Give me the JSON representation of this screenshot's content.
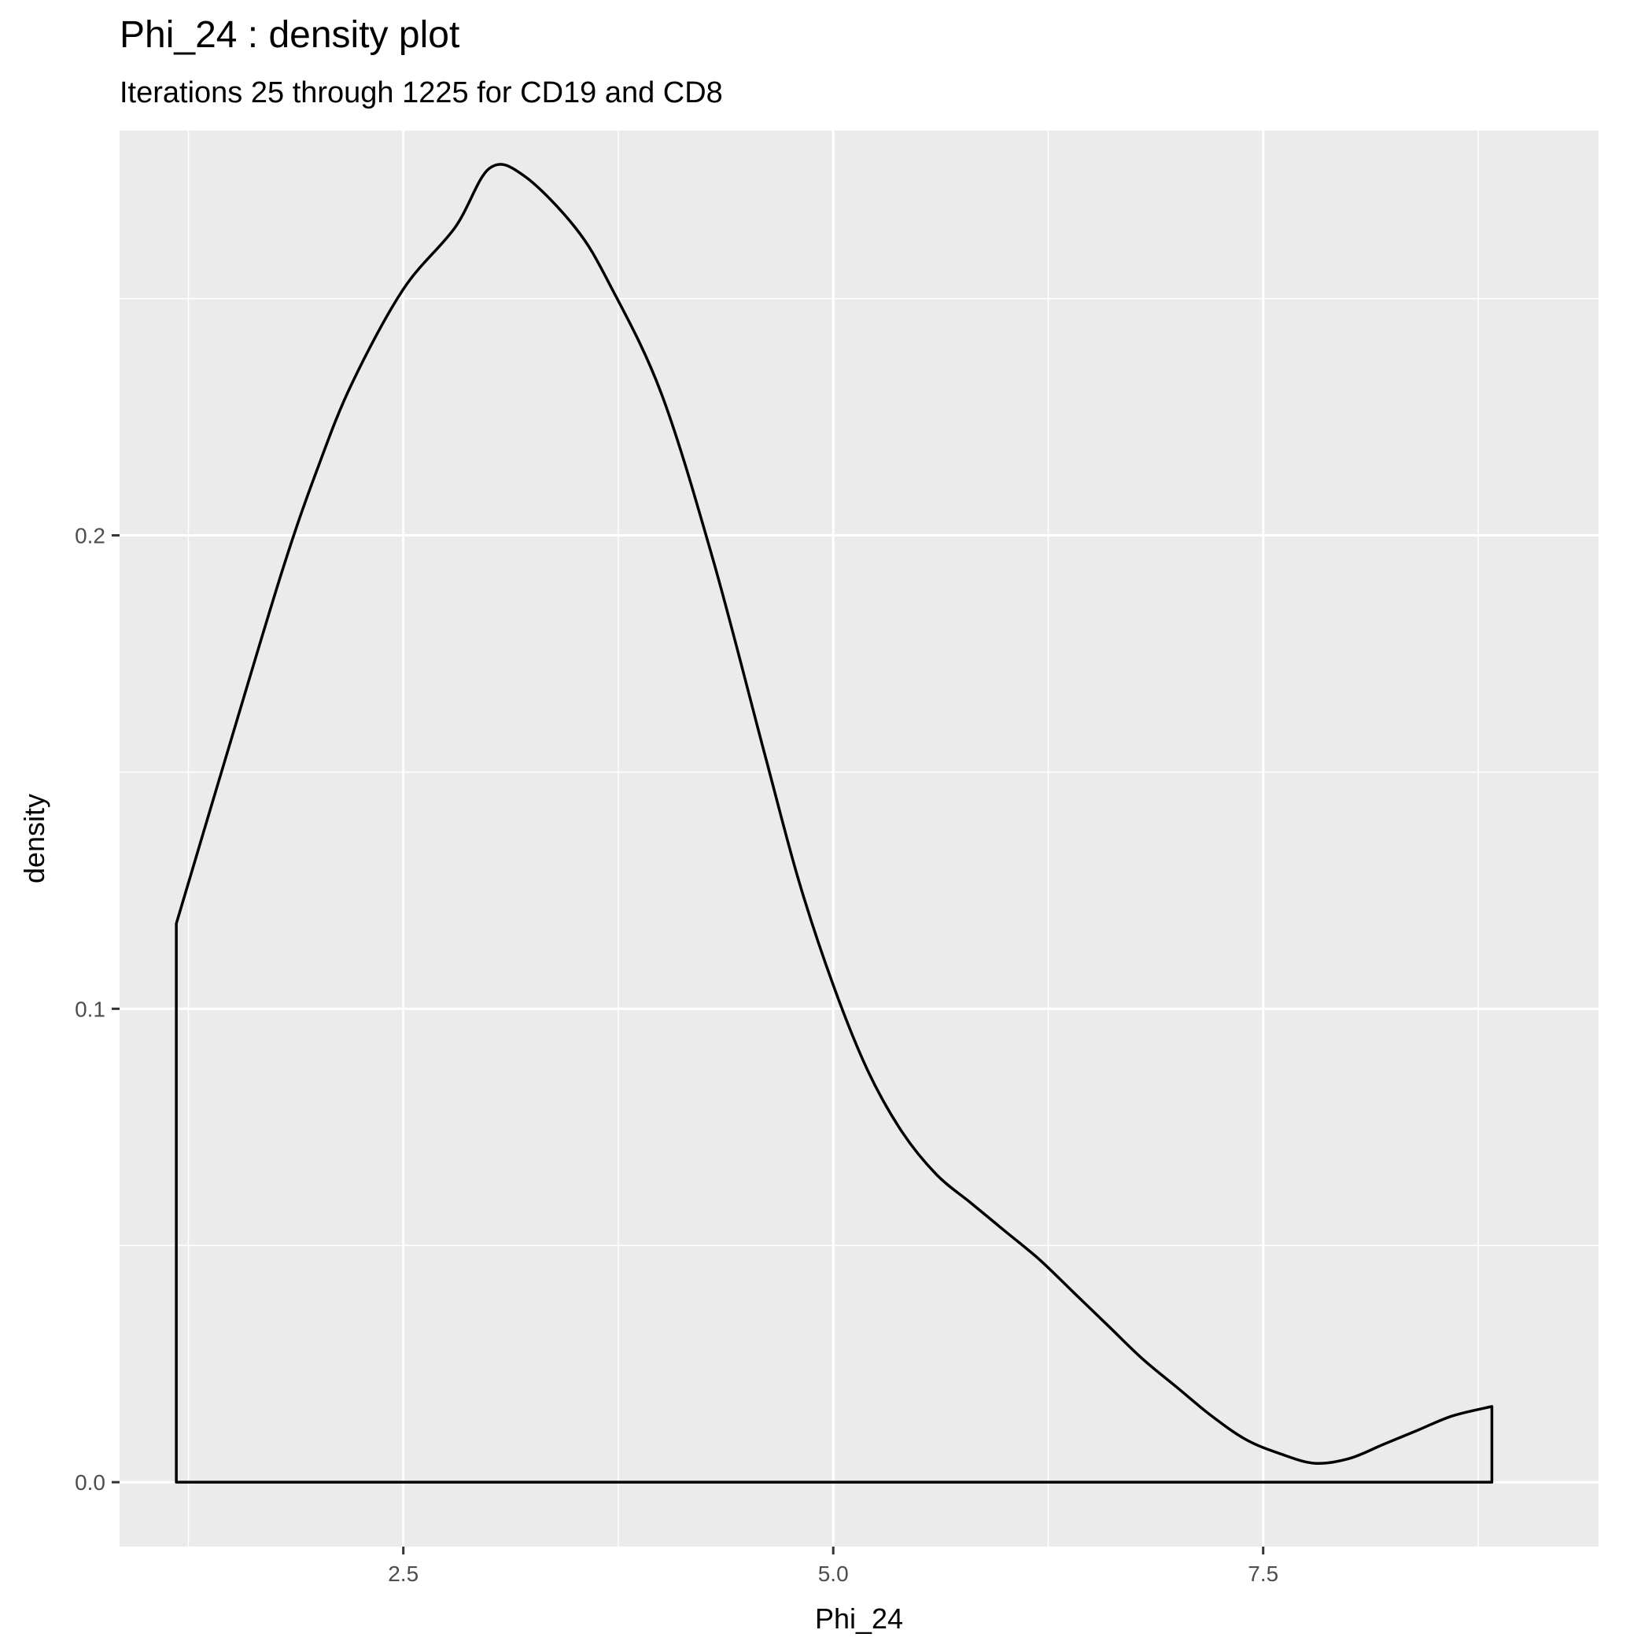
{
  "chart_data": {
    "type": "area",
    "title": "Phi_24 : density plot",
    "subtitle": "Iterations 25 through 1225 for CD19 and CD8",
    "xlabel": "Phi_24",
    "ylabel": "density",
    "xlim": [
      0.85,
      9.45
    ],
    "ylim": [
      -0.0136,
      0.2855
    ],
    "x_ticks": [
      2.5,
      5.0,
      7.5
    ],
    "x_tick_labels": [
      "2.5",
      "5.0",
      "7.5"
    ],
    "y_ticks": [
      0.0,
      0.1,
      0.2
    ],
    "y_tick_labels": [
      "0.0",
      "0.1",
      "0.2"
    ],
    "grid": true,
    "colors": {
      "panel": "#ebebeb",
      "grid": "#ffffff",
      "line": "#000000",
      "fill": "none",
      "tick_text": "#4d4d4d",
      "tick_mark": "#333333"
    },
    "series": [
      {
        "x": [
          1.18,
          1.5,
          1.8,
          2.0,
          2.2,
          2.5,
          2.8,
          3.0,
          3.2,
          3.5,
          3.7,
          4.0,
          4.3,
          4.6,
          4.8,
          5.0,
          5.2,
          5.4,
          5.6,
          5.8,
          6.0,
          6.2,
          6.4,
          6.6,
          6.8,
          7.0,
          7.2,
          7.4,
          7.6,
          7.8,
          8.0,
          8.2,
          8.4,
          8.6,
          8.83
        ],
        "y": [
          0.118,
          0.157,
          0.193,
          0.214,
          0.232,
          0.252,
          0.265,
          0.2775,
          0.276,
          0.265,
          0.253,
          0.23,
          0.195,
          0.154,
          0.127,
          0.105,
          0.087,
          0.074,
          0.065,
          0.059,
          0.053,
          0.047,
          0.04,
          0.033,
          0.026,
          0.02,
          0.014,
          0.009,
          0.006,
          0.004,
          0.005,
          0.008,
          0.011,
          0.014,
          0.016
        ]
      }
    ]
  }
}
